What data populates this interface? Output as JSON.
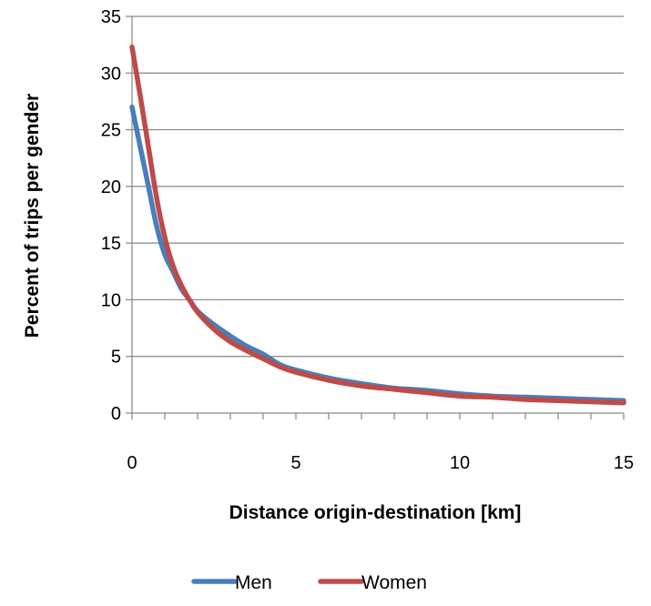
{
  "chart_data": {
    "type": "line",
    "title": "",
    "xlabel": "Distance origin-destination [km]",
    "ylabel": "Percent of trips per gender",
    "xlim": [
      0,
      15
    ],
    "ylim": [
      0,
      35
    ],
    "xticks": [
      0,
      5,
      10,
      15
    ],
    "yticks": [
      0,
      5,
      10,
      15,
      20,
      25,
      30,
      35
    ],
    "grid": "horizontal",
    "legend_position": "bottom",
    "series": [
      {
        "name": "Men",
        "color": "#4a7ebb",
        "x": [
          0,
          0.25,
          0.5,
          0.75,
          1,
          1.25,
          1.5,
          1.75,
          2,
          2.5,
          3,
          3.5,
          4,
          4.5,
          5,
          6,
          7,
          8,
          9,
          10,
          11,
          12,
          13,
          14,
          15
        ],
        "y": [
          27,
          23.5,
          20,
          16.5,
          14,
          12.5,
          11,
          10,
          9,
          7.8,
          6.8,
          5.9,
          5.2,
          4.3,
          3.8,
          3.1,
          2.6,
          2.2,
          2,
          1.7,
          1.5,
          1.4,
          1.3,
          1.2,
          1.1
        ]
      },
      {
        "name": "Women",
        "color": "#be4b48",
        "x": [
          0,
          0.25,
          0.5,
          0.75,
          1,
          1.25,
          1.5,
          1.75,
          2,
          2.5,
          3,
          3.5,
          4,
          4.5,
          5,
          6,
          7,
          8,
          9,
          10,
          11,
          12,
          13,
          14,
          15
        ],
        "y": [
          32.3,
          28,
          23.5,
          19,
          15.5,
          13,
          11.3,
          10,
          8.9,
          7.4,
          6.3,
          5.5,
          4.8,
          4.1,
          3.6,
          2.9,
          2.4,
          2.1,
          1.8,
          1.5,
          1.4,
          1.2,
          1.1,
          1,
          0.9
        ]
      }
    ]
  }
}
